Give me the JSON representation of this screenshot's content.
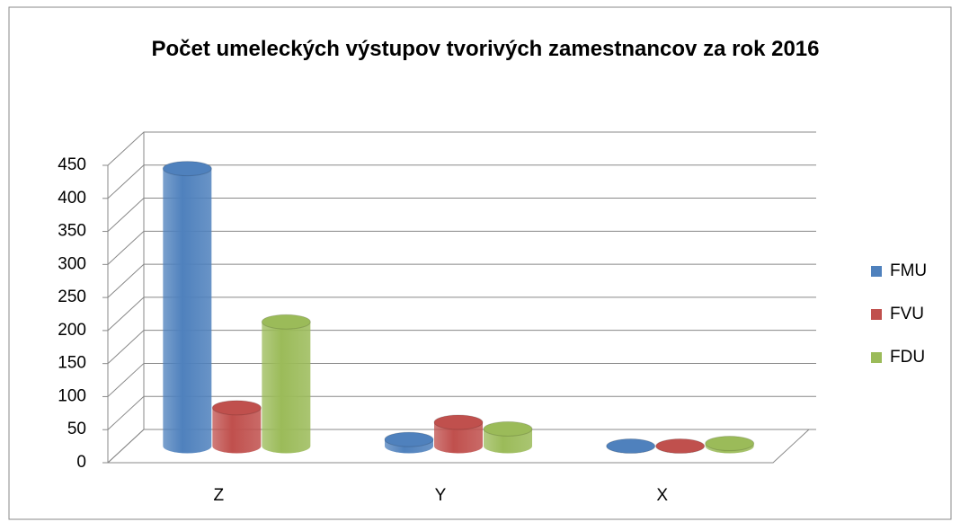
{
  "chart_data": {
    "type": "bar3d",
    "title": "Počet umeleckých výstupov tvorivých zamestnancov za rok 2016",
    "categories": [
      "Z",
      "Y",
      "X"
    ],
    "series": [
      {
        "name": "FMU",
        "color": "#4f81bd",
        "values": [
          420,
          10,
          0
        ]
      },
      {
        "name": "FVU",
        "color": "#c0504d",
        "values": [
          58,
          36,
          0
        ]
      },
      {
        "name": "FDU",
        "color": "#9bbb59",
        "values": [
          188,
          26,
          4
        ]
      }
    ],
    "ylim": [
      0,
      450
    ],
    "yticks": [
      0,
      50,
      100,
      150,
      200,
      250,
      300,
      350,
      400,
      450
    ],
    "grid": true,
    "legend": "right"
  }
}
